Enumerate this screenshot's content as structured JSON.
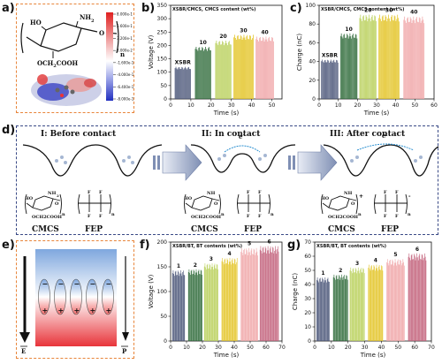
{
  "panels": {
    "a": {
      "letter": "a)",
      "struct": {
        "ho": "HO",
        "nh2": "NH",
        "nh2_sub": "2",
        "o": "O",
        "n": "n",
        "side": "OCH",
        "side_sub": "2",
        "side_end": "COOH"
      },
      "colorbar": {
        "ticks": [
          "8.000e-1",
          "5.600e-1",
          "3.200e-1",
          "8.000e-2",
          "-1.600e-1",
          "-4.000e-1",
          "-6.400e-1",
          "-8.000e-1"
        ]
      }
    },
    "b": {
      "letter": "b)"
    },
    "c": {
      "letter": "c)"
    },
    "d": {
      "letter": "d)",
      "stages": [
        "I: Before contact",
        "II: In contact",
        "III: After contact"
      ],
      "electron": "e",
      "labels": {
        "cmcs": "CMCS",
        "fep": "FEP",
        "plus": "+",
        "minus": "-"
      },
      "struct": {
        "ho": "HO",
        "nh2": "NH",
        "nh2_sub": "2",
        "o": "O",
        "n": "n",
        "side": "OCH",
        "side_sub": "2",
        "side_end": "COOH",
        "f": "F"
      }
    },
    "e": {
      "letter": "e)",
      "e_label": "E",
      "p_label": "P",
      "charges": {
        "plus": "+",
        "minus": "−"
      }
    },
    "f": {
      "letter": "f)"
    },
    "g": {
      "letter": "g)"
    }
  },
  "chart_data": [
    {
      "id": "b",
      "type": "bar",
      "header": "XSBR/CMCS, CMCS content (wt%)",
      "xlabel": "Time (s)",
      "ylabel": "Voltage (V)",
      "xlim": [
        0,
        55
      ],
      "ylim": [
        0,
        350
      ],
      "xticks": [
        0,
        10,
        20,
        30,
        40,
        50
      ],
      "yticks": [
        0,
        50,
        100,
        150,
        200,
        250,
        300,
        350
      ],
      "series": [
        {
          "name": "XSBR",
          "x_range": [
            2,
            10
          ],
          "value": 120,
          "color": "#4a5578"
        },
        {
          "name": "10",
          "x_range": [
            12,
            20
          ],
          "value": 195,
          "color": "#2f6b3a"
        },
        {
          "name": "20",
          "x_range": [
            22,
            30
          ],
          "value": 218,
          "color": "#b9d05a"
        },
        {
          "name": "30",
          "x_range": [
            31,
            41
          ],
          "value": 240,
          "color": "#e3c425"
        },
        {
          "name": "40",
          "x_range": [
            42,
            51
          ],
          "value": 233,
          "color": "#f0a6a8"
        }
      ]
    },
    {
      "id": "c",
      "type": "bar",
      "header": "XSBR/CMCS, CMCS content (wt%)",
      "xlabel": "Time (s)",
      "ylabel": "Charge (nC)",
      "xlim": [
        0,
        60
      ],
      "ylim": [
        0,
        100
      ],
      "xticks": [
        0,
        10,
        20,
        30,
        40,
        50,
        60
      ],
      "yticks": [
        0,
        20,
        40,
        60,
        80,
        100
      ],
      "series": [
        {
          "name": "XSBR",
          "x_range": [
            1,
            10
          ],
          "value": 42,
          "color": "#4a5578"
        },
        {
          "name": "10",
          "x_range": [
            11,
            20
          ],
          "value": 70,
          "color": "#2f6b3a"
        },
        {
          "name": "20",
          "x_range": [
            21,
            30
          ],
          "value": 90,
          "color": "#b9d05a"
        },
        {
          "name": "30",
          "x_range": [
            31,
            42
          ],
          "value": 90,
          "color": "#e3c425"
        },
        {
          "name": "40",
          "x_range": [
            44,
            55
          ],
          "value": 88,
          "color": "#f0a6a8"
        }
      ]
    },
    {
      "id": "f",
      "type": "bar",
      "header": "XSBR/BT, BT contents (wt%)",
      "xlabel": "Time (s)",
      "ylabel": "Voltage (V)",
      "xlim": [
        0,
        70
      ],
      "ylim": [
        0,
        200
      ],
      "xticks": [
        0,
        10,
        20,
        30,
        40,
        50,
        60,
        70
      ],
      "yticks": [
        0,
        50,
        100,
        150,
        200
      ],
      "series": [
        {
          "name": "1",
          "x_range": [
            1,
            9
          ],
          "value": 143,
          "color": "#4a5578"
        },
        {
          "name": "2",
          "x_range": [
            11,
            20
          ],
          "value": 145,
          "color": "#2f6b3a"
        },
        {
          "name": "3",
          "x_range": [
            21,
            30
          ],
          "value": 157,
          "color": "#b9d05a"
        },
        {
          "name": "4",
          "x_range": [
            32,
            42
          ],
          "value": 168,
          "color": "#e3c425"
        },
        {
          "name": "5",
          "x_range": [
            44,
            55
          ],
          "value": 188,
          "color": "#f0a6a8"
        },
        {
          "name": "6",
          "x_range": [
            56,
            68
          ],
          "value": 192,
          "color": "#c2607a"
        }
      ]
    },
    {
      "id": "g",
      "type": "bar",
      "header": "XSBR/BT, BT contents (wt%)",
      "xlabel": "Time (s)",
      "ylabel": "Charge (nC)",
      "xlim": [
        0,
        70
      ],
      "ylim": [
        0,
        70
      ],
      "xticks": [
        0,
        10,
        20,
        30,
        40,
        50,
        60,
        70
      ],
      "yticks": [
        0,
        10,
        20,
        30,
        40,
        50,
        60,
        70
      ],
      "series": [
        {
          "name": "1",
          "x_range": [
            1,
            9
          ],
          "value": 45,
          "color": "#4a5578"
        },
        {
          "name": "2",
          "x_range": [
            11,
            20
          ],
          "value": 47,
          "color": "#2f6b3a"
        },
        {
          "name": "3",
          "x_range": [
            21,
            30
          ],
          "value": 52,
          "color": "#b9d05a"
        },
        {
          "name": "4",
          "x_range": [
            32,
            41
          ],
          "value": 54,
          "color": "#e3c425"
        },
        {
          "name": "5",
          "x_range": [
            43,
            54
          ],
          "value": 58,
          "color": "#f0a6a8"
        },
        {
          "name": "6",
          "x_range": [
            56,
            67
          ],
          "value": 62,
          "color": "#c2607a"
        }
      ]
    }
  ]
}
